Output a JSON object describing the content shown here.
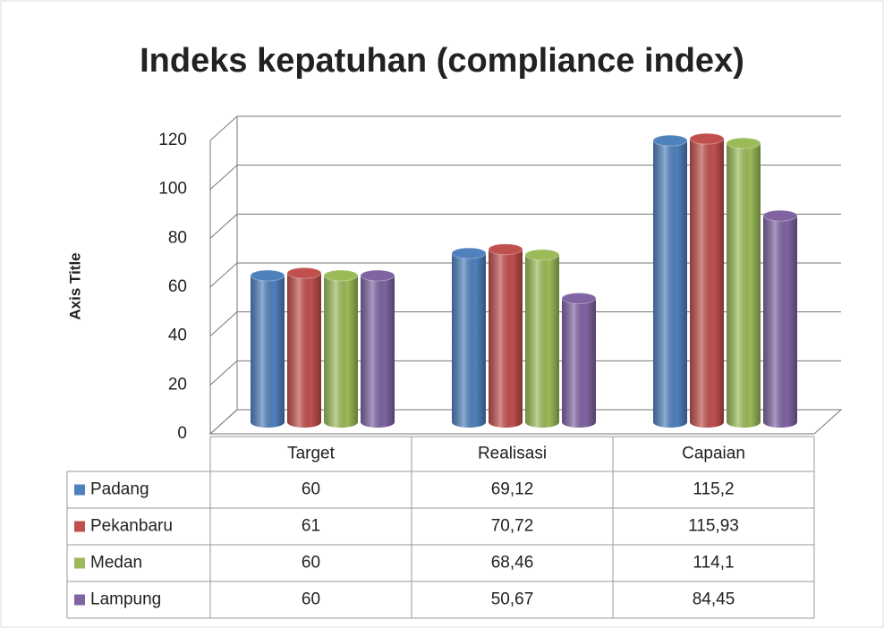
{
  "chart_data": {
    "type": "bar3d",
    "title": "Indeks kepatuhan (compliance index)",
    "y_axis_label": "Axis Title",
    "categories": [
      "Target",
      "Realisasi",
      "Capaian"
    ],
    "series": [
      {
        "name": "Padang",
        "color": "#4f81bd",
        "values": [
          60,
          69.12,
          115.2
        ],
        "value_labels": [
          "60",
          "69,12",
          "115,2"
        ]
      },
      {
        "name": "Pekanbaru",
        "color": "#c0504d",
        "values": [
          61,
          70.72,
          115.93
        ],
        "value_labels": [
          "61",
          "70,72",
          "115,93"
        ]
      },
      {
        "name": "Medan",
        "color": "#9bbb59",
        "values": [
          60,
          68.46,
          114.1
        ],
        "value_labels": [
          "60",
          "68,46",
          "114,1"
        ]
      },
      {
        "name": "Lampung",
        "color": "#8064a2",
        "values": [
          60,
          50.67,
          84.45
        ],
        "value_labels": [
          "60",
          "50,67",
          "84,45"
        ]
      }
    ],
    "ylim": [
      0,
      120
    ],
    "yticks": [
      0,
      20,
      40,
      60,
      80,
      100,
      120
    ],
    "grid": true,
    "data_table": true
  }
}
